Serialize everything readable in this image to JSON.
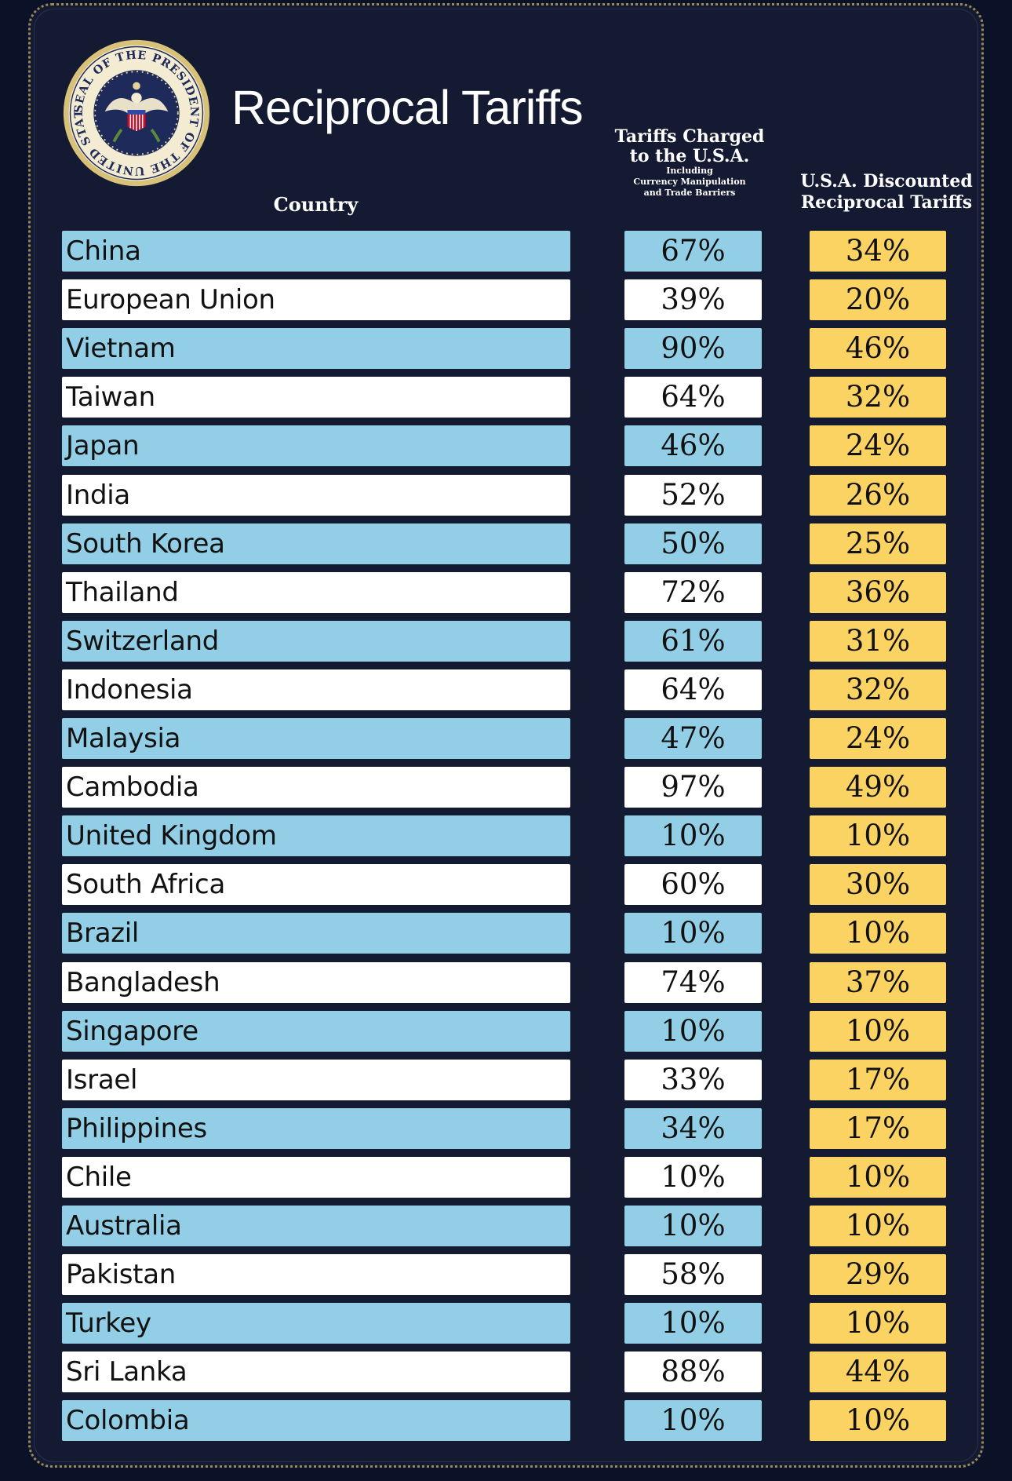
{
  "title": "Reciprocal Tariffs",
  "seal": {
    "icon": "presidential-seal-icon",
    "text": "SEAL OF THE PRESIDENT OF THE UNITED STATES"
  },
  "headers": {
    "country": "Country",
    "charged_line1": "Tariffs Charged",
    "charged_line2": "to the U.S.A.",
    "charged_sub1": "Including",
    "charged_sub2": "Currency Manipulation",
    "charged_sub3": "and Trade Barriers",
    "recip_line1": "U.S.A. Discounted",
    "recip_line2": "Reciprocal Tariffs"
  },
  "colors": {
    "background": "#141a32",
    "row_blue": "#92cfe6",
    "row_white": "#ffffff",
    "recip_yellow": "#fbd363",
    "border_gold": "#9a8a55"
  },
  "rows": [
    {
      "country": "China",
      "charged": "67%",
      "reciprocal": "34%"
    },
    {
      "country": "European Union",
      "charged": "39%",
      "reciprocal": "20%"
    },
    {
      "country": "Vietnam",
      "charged": "90%",
      "reciprocal": "46%"
    },
    {
      "country": "Taiwan",
      "charged": "64%",
      "reciprocal": "32%"
    },
    {
      "country": "Japan",
      "charged": "46%",
      "reciprocal": "24%"
    },
    {
      "country": "India",
      "charged": "52%",
      "reciprocal": "26%"
    },
    {
      "country": "South Korea",
      "charged": "50%",
      "reciprocal": "25%"
    },
    {
      "country": "Thailand",
      "charged": "72%",
      "reciprocal": "36%"
    },
    {
      "country": "Switzerland",
      "charged": "61%",
      "reciprocal": "31%"
    },
    {
      "country": "Indonesia",
      "charged": "64%",
      "reciprocal": "32%"
    },
    {
      "country": "Malaysia",
      "charged": "47%",
      "reciprocal": "24%"
    },
    {
      "country": "Cambodia",
      "charged": "97%",
      "reciprocal": "49%"
    },
    {
      "country": "United Kingdom",
      "charged": "10%",
      "reciprocal": "10%"
    },
    {
      "country": "South Africa",
      "charged": "60%",
      "reciprocal": "30%"
    },
    {
      "country": "Brazil",
      "charged": "10%",
      "reciprocal": "10%"
    },
    {
      "country": "Bangladesh",
      "charged": "74%",
      "reciprocal": "37%"
    },
    {
      "country": "Singapore",
      "charged": "10%",
      "reciprocal": "10%"
    },
    {
      "country": "Israel",
      "charged": "33%",
      "reciprocal": "17%"
    },
    {
      "country": "Philippines",
      "charged": "34%",
      "reciprocal": "17%"
    },
    {
      "country": "Chile",
      "charged": "10%",
      "reciprocal": "10%"
    },
    {
      "country": "Australia",
      "charged": "10%",
      "reciprocal": "10%"
    },
    {
      "country": "Pakistan",
      "charged": "58%",
      "reciprocal": "29%"
    },
    {
      "country": "Turkey",
      "charged": "10%",
      "reciprocal": "10%"
    },
    {
      "country": "Sri Lanka",
      "charged": "88%",
      "reciprocal": "44%"
    },
    {
      "country": "Colombia",
      "charged": "10%",
      "reciprocal": "10%"
    }
  ]
}
